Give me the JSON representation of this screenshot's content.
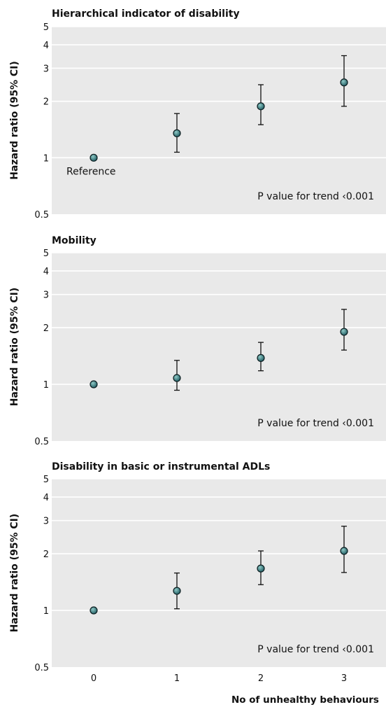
{
  "chart_data": [
    {
      "type": "scatter",
      "title": "Hierarchical indicator of disability",
      "ylabel": "Hazard ratio (95% CI)",
      "y_scale": "log",
      "ylim": [
        0.5,
        5
      ],
      "y_ticks": [
        "0.5",
        "1",
        "2",
        "3",
        "4",
        "5"
      ],
      "x": [
        0,
        1,
        2,
        3
      ],
      "values": [
        1.0,
        1.35,
        1.88,
        2.52
      ],
      "ci_lower": [
        null,
        1.07,
        1.5,
        1.88
      ],
      "ci_upper": [
        null,
        1.72,
        2.45,
        3.5
      ],
      "point_labels": [
        "Reference",
        "",
        "",
        ""
      ],
      "annotation": "P value for trend ‹0.001",
      "grid": true
    },
    {
      "type": "scatter",
      "title": "Mobility",
      "ylabel": "Hazard ratio (95% CI)",
      "y_scale": "log",
      "ylim": [
        0.5,
        5
      ],
      "y_ticks": [
        "0.5",
        "1",
        "2",
        "3",
        "4",
        "5"
      ],
      "x": [
        0,
        1,
        2,
        3
      ],
      "values": [
        1.0,
        1.08,
        1.38,
        1.9
      ],
      "ci_lower": [
        null,
        0.93,
        1.18,
        1.52
      ],
      "ci_upper": [
        null,
        1.34,
        1.67,
        2.5
      ],
      "annotation": "P value for trend ‹0.001",
      "grid": true
    },
    {
      "type": "scatter",
      "title": "Disability in basic or instrumental ADLs",
      "ylabel": "Hazard ratio (95% CI)",
      "y_scale": "log",
      "ylim": [
        0.5,
        5
      ],
      "y_ticks": [
        "0.5",
        "1",
        "2",
        "3",
        "4",
        "5"
      ],
      "x": [
        0,
        1,
        2,
        3
      ],
      "x_ticks": [
        "0",
        "1",
        "2",
        "3"
      ],
      "xlabel": "No of unhealthy behaviours",
      "values": [
        1.0,
        1.27,
        1.67,
        2.07
      ],
      "ci_lower": [
        null,
        1.02,
        1.37,
        1.59
      ],
      "ci_upper": [
        null,
        1.58,
        2.07,
        2.8
      ],
      "annotation": "P value for trend ‹0.001",
      "grid": true
    }
  ],
  "colors": {
    "plot_background": "#e9e9e9",
    "gridline": "#ffffff",
    "marker_fill": "#1d5a60",
    "marker_highlight": "#8fc9c6",
    "marker_edge": "#0b1d20",
    "error_bar": "#111111"
  }
}
